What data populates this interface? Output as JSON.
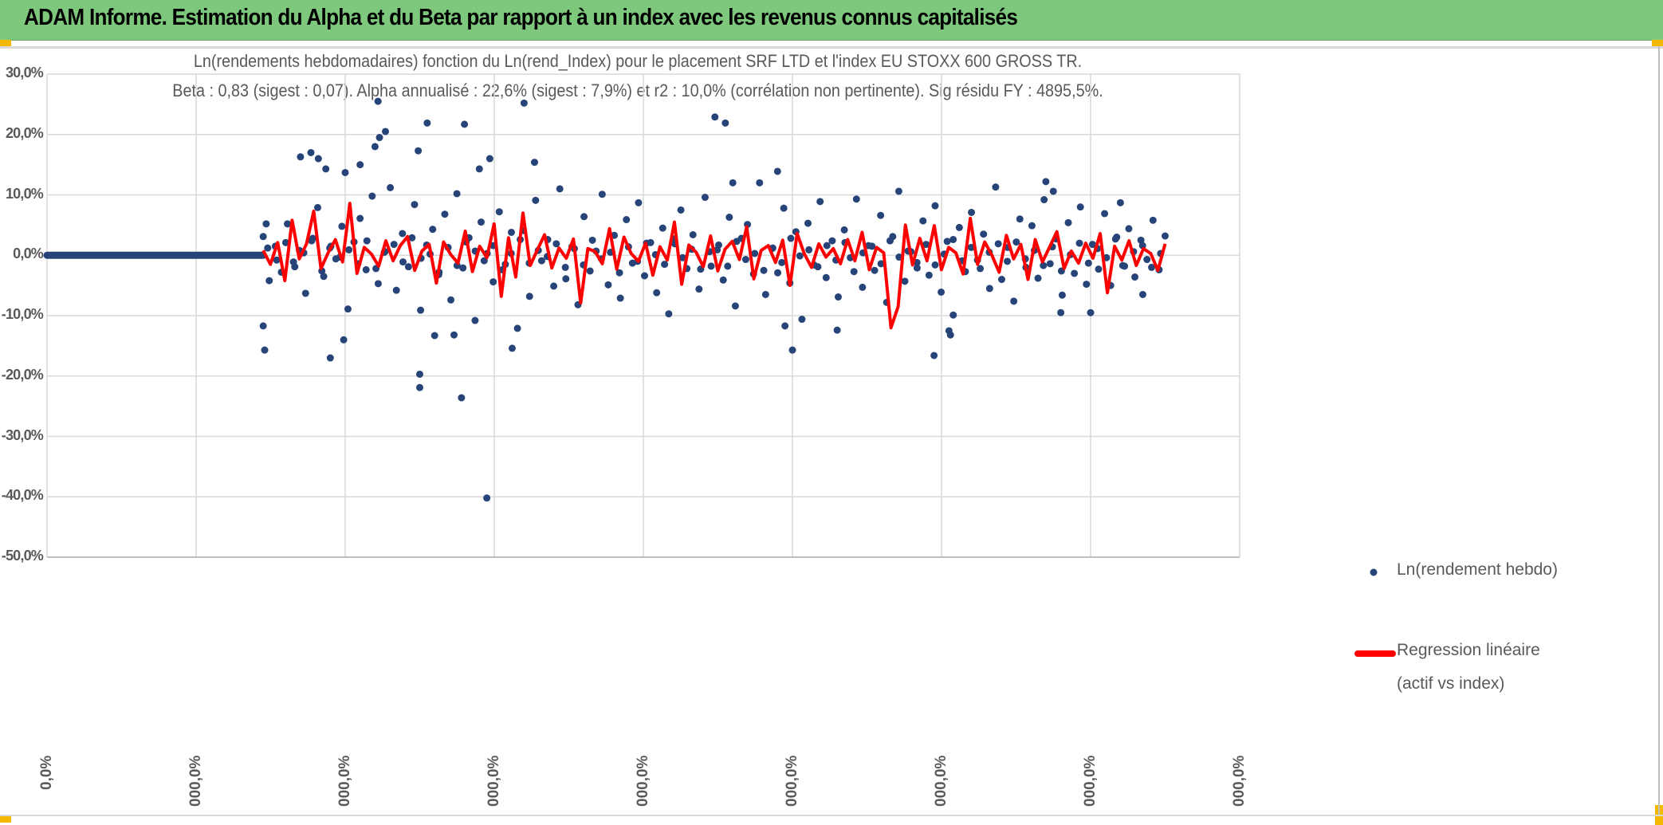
{
  "header": {
    "title": "ADAM Informe. Estimation du Alpha et du Beta par rapport à un index avec les revenus connus capitalisés"
  },
  "chart_data": {
    "type": "scatter",
    "title": "Ln(rendements hebdomadaires) fonction du Ln(rend_Index) pour le placement SRF LTD et l'index EU STOXX 600 GROSS TR.",
    "subtitle": "Beta : 0,83 (sigest : 0,07). Alpha annualisé : 22,6% (sigest : 7,9%) et r2 : 10,0% (corrélation non pertinente). Sig résidu FY : 4895,5%.",
    "ylim": [
      -50,
      30
    ],
    "xlim": [
      0,
      8
    ],
    "y_ticks": [
      "30,0%",
      "20,0%",
      "10,0%",
      "0,0%",
      "-10,0%",
      "-20,0%",
      "-30,0%",
      "-40,0%",
      "-50,0%"
    ],
    "y_tick_values": [
      30,
      20,
      10,
      0,
      -10,
      -20,
      -30,
      -40,
      -50
    ],
    "x_ticks": [
      "0,0%",
      "000,0%",
      "000,0%",
      "000,0%",
      "000,0%",
      "000,0%",
      "000,0%",
      "000,0%",
      "000,0%"
    ],
    "grid": true,
    "legend": {
      "placement": "right",
      "entries": [
        "Ln(rendement hebdo)",
        "Regression linéaire",
        "(actif vs index)"
      ]
    },
    "colors": {
      "scatter": "#264478",
      "regression": "#ff0000",
      "header": "#7dc87d"
    },
    "zero_segment_x": [
      0,
      1.45
    ],
    "data_x_range": [
      1.45,
      7.5
    ],
    "scatter_outliers": [
      [
        1.45,
        -11.7
      ],
      [
        1.46,
        -15.7
      ],
      [
        1.47,
        5.2
      ],
      [
        1.7,
        16.3
      ],
      [
        1.77,
        17
      ],
      [
        1.82,
        16
      ],
      [
        1.87,
        14.3
      ],
      [
        1.9,
        -17
      ],
      [
        1.99,
        -14
      ],
      [
        2.0,
        13.7
      ],
      [
        2.1,
        15
      ],
      [
        2.2,
        18
      ],
      [
        2.23,
        19.5
      ],
      [
        2.27,
        20.5
      ],
      [
        2.22,
        25.5
      ],
      [
        2.49,
        17.3
      ],
      [
        2.5,
        -19.7
      ],
      [
        2.5,
        -21.9
      ],
      [
        2.55,
        21.9
      ],
      [
        2.6,
        -13.3
      ],
      [
        2.73,
        -13.2
      ],
      [
        2.8,
        21.7
      ],
      [
        2.78,
        -23.6
      ],
      [
        2.9,
        14.3
      ],
      [
        2.95,
        -40.2
      ],
      [
        2.97,
        16
      ],
      [
        3.12,
        -15.4
      ],
      [
        3.2,
        25.2
      ],
      [
        3.27,
        15.4
      ],
      [
        4.48,
        22.9
      ],
      [
        4.55,
        21.9
      ],
      [
        4.6,
        12
      ],
      [
        4.9,
        13.9
      ],
      [
        4.95,
        -11.7
      ],
      [
        5.0,
        -15.7
      ],
      [
        5.3,
        -12.4
      ],
      [
        5.95,
        -16.6
      ],
      [
        6.05,
        -12.5
      ],
      [
        6.06,
        -13.2
      ],
      [
        6.7,
        12.2
      ],
      [
        6.75,
        10.6
      ],
      [
        6.8,
        -9.5
      ],
      [
        7.0,
        -9.5
      ],
      [
        7.2,
        8.7
      ],
      [
        7.35,
        -6.5
      ]
    ],
    "scatter_bulk": [
      3.1,
      -4.2,
      1.5,
      -2.8,
      5.2,
      -1.1,
      0.8,
      -6.3,
      2.4,
      7.9,
      -3.5,
      1.2,
      -0.6,
      4.8,
      -8.9,
      2.2,
      6.1,
      -2.4,
      9.8,
      -4.7,
      0.5,
      11.2,
      -5.8,
      3.6,
      -1.9,
      8.4,
      -9.1,
      1.7,
      4.3,
      -3.2,
      6.8,
      -7.4,
      10.2,
      -2.1,
      2.9,
      -10.8,
      5.5,
      0.3,
      -4.4,
      7.2,
      -1.5,
      3.8,
      -12.1,
      4.1,
      -6.8,
      9.1,
      -0.9,
      2.6,
      -5.1,
      11.0,
      -3.9,
      1.4,
      -8.2,
      6.4,
      -2.6,
      0.7,
      10.1,
      -4.9,
      3.3,
      -7.1,
      5.9,
      -1.3,
      8.7,
      -3.4,
      2.1,
      -6.2,
      4.5,
      -9.7,
      1.9,
      7.5,
      -2.2,
      3.4,
      -5.6,
      9.6,
      -1.8,
      0.9,
      -4.1,
      6.3,
      -8.4,
      2.8,
      5.1,
      -3.1,
      12.0,
      -6.5,
      1.1,
      -2.9,
      7.8,
      -4.6,
      3.9,
      -10.6,
      5.3,
      -1.6,
      8.9,
      -3.7,
      2.4,
      -6.9,
      4.2,
      -0.4,
      9.3,
      -5.3,
      1.6,
      -2.5,
      6.6,
      -7.8,
      3.1,
      10.6,
      -4.3,
      0.6,
      -1.2,
      5.7,
      -3.3,
      8.2,
      -6.1,
      2.3,
      -9.9,
      4.6,
      -2.7,
      7.1,
      -0.8,
      3.5,
      -5.5,
      11.3,
      -4.0,
      1.3,
      -7.6,
      6.0,
      -2.0,
      4.9,
      -3.8,
      9.2,
      -1.4,
      2.7,
      -6.6,
      5.4,
      -3.0,
      8.0,
      -4.8,
      1.8,
      -2.3,
      6.9,
      -5.0,
      3.0,
      -1.7,
      4.4,
      -3.6,
      2.5,
      -0.7,
      5.8,
      -2.4,
      3.2
    ],
    "scatter_band": [
      1.2,
      -0.8,
      2.1,
      -1.9,
      0.4,
      2.8,
      -2.6,
      1.5,
      -0.3,
      0.9,
      -1.4,
      2.4,
      -2.2,
      0.6,
      1.8,
      -1.1,
      2.9,
      -0.5,
      0.2,
      -2.8,
      1.3,
      -1.7,
      2.2,
      0.7,
      -0.9,
      1.6,
      -2.4,
      0.3,
      2.6,
      -1.3,
      0.8,
      -0.2,
      1.9,
      -2.0,
      1.1,
      -1.6,
      2.5,
      -0.6,
      0.5,
      -2.9,
      1.4,
      -1.0,
      2.0,
      0.1,
      -1.5,
      2.7,
      -0.4,
      1.0,
      -2.3,
      0.6,
      1.7,
      -1.8,
      2.3,
      -0.7,
      0.3,
      -2.5,
      1.2,
      -1.2,
      2.8,
      -0.1,
      0.9,
      -1.9,
      1.6,
      -0.8,
      2.1,
      -2.7,
      0.4,
      1.5,
      -1.4,
      2.4,
      -0.3,
      0.7,
      -2.1,
      1.8,
      -1.6,
      0.2,
      2.6,
      -0.9,
      1.3,
      -2.2,
      0.5,
      1.9,
      -1.0,
      2.2,
      -0.6,
      0.8,
      -1.7,
      1.4,
      -2.6,
      0.1,
      2.0,
      -1.3,
      1.1,
      -0.4,
      2.7,
      -1.8,
      0.6,
      1.6,
      -2.0,
      0.3
    ],
    "regression": [
      0.8,
      -1.5,
      2.1,
      -4.2,
      5.8,
      -0.6,
      1.9,
      7.3,
      -2.2,
      0.4,
      2.6,
      -1.1,
      8.6,
      -3.0,
      1.3,
      0.2,
      -1.8,
      2.4,
      -0.9,
      1.6,
      3.1,
      -2.5,
      0.7,
      1.8,
      -4.6,
      2.2,
      0.1,
      -1.3,
      4.0,
      -2.7,
      1.5,
      -0.4,
      5.2,
      -6.8,
      2.9,
      -3.6,
      7.0,
      -1.7,
      0.9,
      3.4,
      -2.1,
      1.2,
      -0.5,
      2.7,
      -7.9,
      1.1,
      0.6,
      -1.4,
      4.4,
      -2.3,
      3.0,
      0.3,
      -1.0,
      2.0,
      -3.3,
      1.4,
      -0.8,
      5.5,
      -4.8,
      1.7,
      0.5,
      -1.9,
      3.2,
      -2.6,
      1.0,
      2.3,
      -0.7,
      4.7,
      -3.9,
      0.8,
      1.6,
      -1.2,
      2.5,
      -5.0,
      3.6,
      0.2,
      -2.0,
      1.9,
      -0.3,
      1.1,
      -1.4,
      2.6,
      -0.9,
      3.8,
      -2.4,
      1.3,
      0.4,
      -12.0,
      -8.5,
      5.0,
      -1.6,
      2.8,
      -0.9,
      4.9,
      -2.4,
      1.3,
      0.4,
      -3.1,
      6.1,
      -1.5,
      2.2,
      0.0,
      -2.8,
      3.3,
      -0.6,
      1.8,
      -4.0,
      2.6,
      -1.1,
      1.4,
      3.9,
      -2.2,
      0.7,
      -1.3,
      2.0,
      -0.5,
      3.6,
      -6.2,
      1.5,
      -0.8,
      2.4,
      -1.7,
      1.1,
      0.3,
      -2.5,
      1.9
    ]
  }
}
